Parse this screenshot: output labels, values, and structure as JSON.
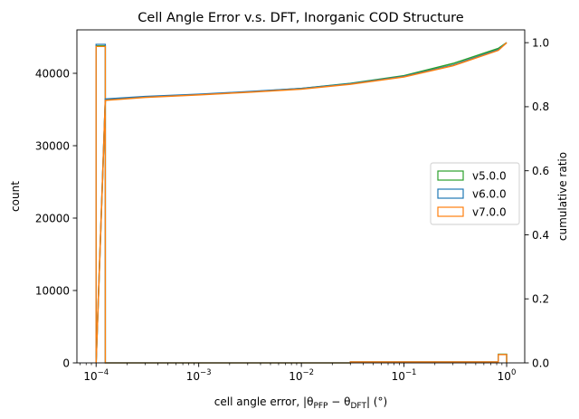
{
  "chart_data": {
    "type": "histogram",
    "title": "Cell Angle Error v.s. DFT, Inorganic COD Structure",
    "xlabel": "cell angle error, |θ_PFP − θ_DFT| (°)",
    "xlabel_parts": {
      "prefix": "cell angle error, |θ",
      "sub1": "PFP",
      "mid": " − θ",
      "sub2": "DFT",
      "suffix": "| (°)"
    },
    "ylabel_left": "count",
    "ylabel_right": "cumulative ratio",
    "xscale": "log",
    "xlim": [
      6.5e-05,
      1.5
    ],
    "ylim_left": [
      0,
      46000
    ],
    "ylim_right": [
      0,
      1.04
    ],
    "x_ticks": [
      {
        "value": 0.0001,
        "base": "10",
        "exp": "−4"
      },
      {
        "value": 0.001,
        "base": "10",
        "exp": "−3"
      },
      {
        "value": 0.01,
        "base": "10",
        "exp": "−2"
      },
      {
        "value": 0.1,
        "base": "10",
        "exp": "−1"
      },
      {
        "value": 1,
        "base": "10",
        "exp": "0"
      }
    ],
    "y_left_ticks": [
      {
        "value": 0,
        "label": "0"
      },
      {
        "value": 10000,
        "label": "10000"
      },
      {
        "value": 20000,
        "label": "20000"
      },
      {
        "value": 30000,
        "label": "30000"
      },
      {
        "value": 40000,
        "label": "40000"
      }
    ],
    "y_right_ticks": [
      {
        "value": 0.0,
        "label": "0.0"
      },
      {
        "value": 0.2,
        "label": "0.2"
      },
      {
        "value": 0.4,
        "label": "0.4"
      },
      {
        "value": 0.6,
        "label": "0.6"
      },
      {
        "value": 0.8,
        "label": "0.8"
      },
      {
        "value": 1.0,
        "label": "1.0"
      }
    ],
    "legend_location": "center-right",
    "series": [
      {
        "name": "v5.0.0",
        "color": "#2ca02c",
        "histogram": [
          [
            0.0001,
            0.000123,
            43800
          ],
          [
            0.000123,
            0.03,
            0
          ],
          [
            0.03,
            0.83,
            120
          ],
          [
            0.83,
            1.0,
            1200
          ]
        ],
        "cumulative": [
          [
            0.0001,
            0.0
          ],
          [
            0.000123,
            0.822
          ],
          [
            0.0003,
            0.83
          ],
          [
            0.001,
            0.838
          ],
          [
            0.003,
            0.846
          ],
          [
            0.01,
            0.857
          ],
          [
            0.03,
            0.873
          ],
          [
            0.1,
            0.897
          ],
          [
            0.3,
            0.935
          ],
          [
            0.83,
            0.982
          ],
          [
            1.0,
            1.0
          ]
        ]
      },
      {
        "name": "v6.0.0",
        "color": "#1f77b4",
        "histogram": [
          [
            0.0001,
            0.000123,
            44000
          ],
          [
            0.000123,
            0.03,
            0
          ],
          [
            0.03,
            0.83,
            140
          ],
          [
            0.83,
            1.0,
            1150
          ]
        ],
        "cumulative": [
          [
            0.0001,
            0.0
          ],
          [
            0.000123,
            0.824
          ],
          [
            0.0003,
            0.832
          ],
          [
            0.001,
            0.839
          ],
          [
            0.003,
            0.847
          ],
          [
            0.01,
            0.857
          ],
          [
            0.03,
            0.872
          ],
          [
            0.1,
            0.895
          ],
          [
            0.3,
            0.93
          ],
          [
            0.83,
            0.978
          ],
          [
            1.0,
            1.0
          ]
        ]
      },
      {
        "name": "v7.0.0",
        "color": "#ff7f0e",
        "histogram": [
          [
            0.0001,
            0.000123,
            43700
          ],
          [
            0.000123,
            0.03,
            0
          ],
          [
            0.03,
            0.83,
            130
          ],
          [
            0.83,
            1.0,
            1150
          ]
        ],
        "cumulative": [
          [
            0.0001,
            0.0
          ],
          [
            0.000123,
            0.82
          ],
          [
            0.0003,
            0.829
          ],
          [
            0.001,
            0.837
          ],
          [
            0.003,
            0.845
          ],
          [
            0.01,
            0.855
          ],
          [
            0.03,
            0.87
          ],
          [
            0.1,
            0.893
          ],
          [
            0.3,
            0.928
          ],
          [
            0.83,
            0.976
          ],
          [
            1.0,
            1.0
          ]
        ]
      }
    ]
  }
}
